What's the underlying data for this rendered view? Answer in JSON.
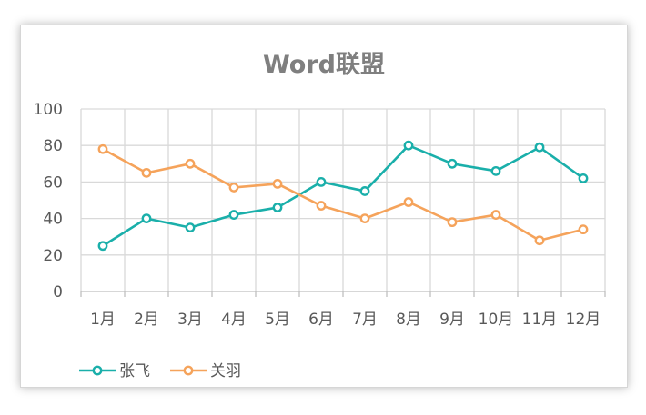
{
  "chart_data": {
    "type": "line",
    "title": "Word联盟",
    "xlabel": "",
    "ylabel": "",
    "categories": [
      "1月",
      "2月",
      "3月",
      "4月",
      "5月",
      "6月",
      "7月",
      "8月",
      "9月",
      "10月",
      "11月",
      "12月"
    ],
    "ylim": [
      0,
      100
    ],
    "yticks": [
      0,
      20,
      40,
      60,
      80,
      100
    ],
    "grid": true,
    "legend": "bottom-left",
    "series": [
      {
        "name": "张飞",
        "color": "#1aafaa",
        "values": [
          25,
          40,
          35,
          42,
          46,
          60,
          55,
          80,
          70,
          66,
          79,
          62
        ]
      },
      {
        "name": "关羽",
        "color": "#f5a35b",
        "values": [
          78,
          65,
          70,
          57,
          59,
          47,
          40,
          49,
          38,
          42,
          28,
          34
        ]
      }
    ]
  }
}
